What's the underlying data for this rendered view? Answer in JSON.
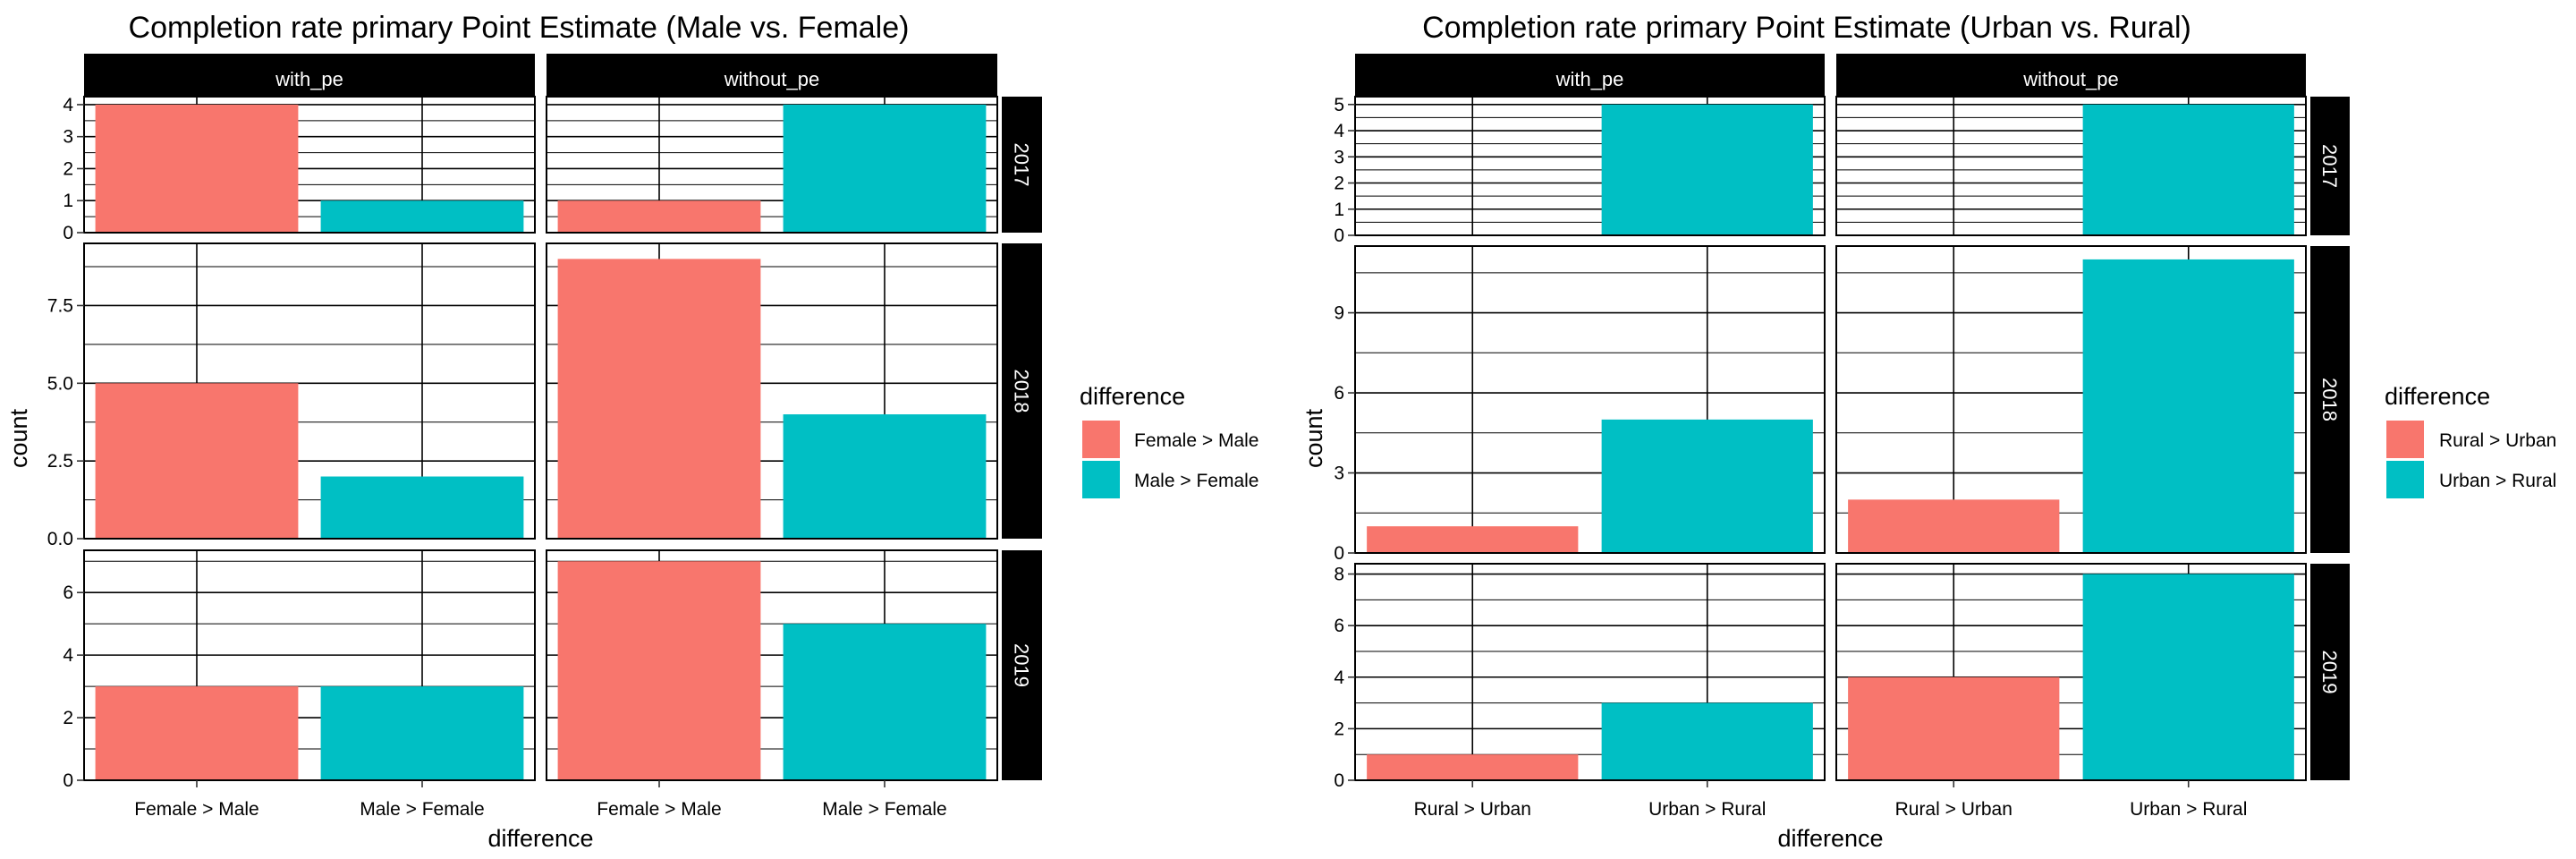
{
  "colors": {
    "female_male": "#F8766D",
    "male_female": "#00BFC4",
    "strip_bg": "#000000",
    "strip_text": "#ffffff",
    "grid": "#000000"
  },
  "chart_data": [
    {
      "type": "bar",
      "title": "Completion rate primary Point Estimate (Male vs. Female)",
      "xlabel": "difference",
      "ylabel": "count",
      "categories": [
        "Female > Male",
        "Male > Female"
      ],
      "columns": [
        "with_pe",
        "without_pe"
      ],
      "legend": {
        "title": "difference",
        "position": "right",
        "entries": [
          "Female > Male",
          "Male > Female"
        ]
      },
      "rows": [
        {
          "label": "2017",
          "ylim": [
            0,
            4.25
          ],
          "ticks": [
            0,
            1,
            2,
            3,
            4
          ],
          "tick_labels": [
            "0",
            "1",
            "2",
            "3",
            "4"
          ],
          "values": {
            "with_pe": [
              4,
              1
            ],
            "without_pe": [
              1,
              4
            ]
          }
        },
        {
          "label": "2018",
          "ylim": [
            0,
            9.5
          ],
          "ticks": [
            0,
            2.5,
            5,
            7.5
          ],
          "tick_labels": [
            "0.0",
            "2.5",
            "5.0",
            "7.5"
          ],
          "values": {
            "with_pe": [
              5,
              2
            ],
            "without_pe": [
              9,
              4
            ]
          }
        },
        {
          "label": "2019",
          "ylim": [
            0,
            7.35
          ],
          "ticks": [
            0,
            2,
            4,
            6
          ],
          "tick_labels": [
            "0",
            "2",
            "4",
            "6"
          ],
          "values": {
            "with_pe": [
              3,
              3
            ],
            "without_pe": [
              7,
              5
            ]
          }
        }
      ],
      "grid": true
    },
    {
      "type": "bar",
      "title": "Completion rate primary Point Estimate (Urban vs. Rural)",
      "xlabel": "difference",
      "ylabel": "count",
      "categories": [
        "Rural > Urban",
        "Urban > Rural"
      ],
      "columns": [
        "with_pe",
        "without_pe"
      ],
      "legend": {
        "title": "difference",
        "position": "right",
        "entries": [
          "Rural > Urban",
          "Urban > Rural"
        ]
      },
      "rows": [
        {
          "label": "2017",
          "ylim": [
            0,
            5.3
          ],
          "ticks": [
            0,
            1,
            2,
            3,
            4,
            5
          ],
          "tick_labels": [
            "0",
            "1",
            "2",
            "3",
            "4",
            "5"
          ],
          "values": {
            "with_pe": [
              0,
              5
            ],
            "without_pe": [
              0,
              5
            ]
          }
        },
        {
          "label": "2018",
          "ylim": [
            0,
            11.5
          ],
          "ticks": [
            0,
            3,
            6,
            9
          ],
          "tick_labels": [
            "0",
            "3",
            "6",
            "9"
          ],
          "values": {
            "with_pe": [
              1,
              5
            ],
            "without_pe": [
              2,
              11
            ]
          }
        },
        {
          "label": "2019",
          "ylim": [
            0,
            8.4
          ],
          "ticks": [
            0,
            2,
            4,
            6,
            8
          ],
          "tick_labels": [
            "0",
            "2",
            "4",
            "6",
            "8"
          ],
          "values": {
            "with_pe": [
              1,
              3
            ],
            "without_pe": [
              4,
              8
            ]
          }
        }
      ],
      "grid": true
    }
  ]
}
